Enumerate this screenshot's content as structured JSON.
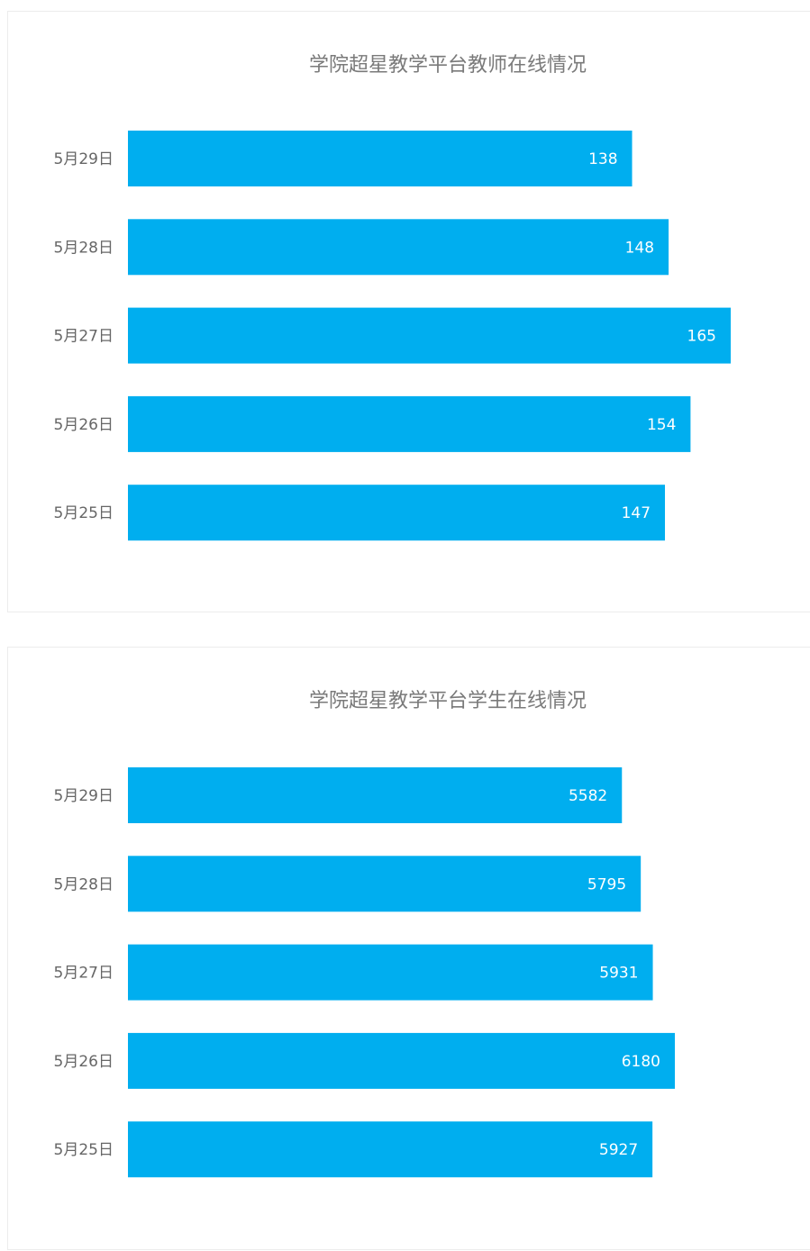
{
  "colors": {
    "bar": "#00aeef",
    "title": "#7a7a7a",
    "category_text": "#666666",
    "value_text": "#ffffff"
  },
  "chart_data": [
    {
      "type": "bar",
      "orientation": "horizontal",
      "title": "学院超星教学平台教师在线情况",
      "categories": [
        "5月29日",
        "5月28日",
        "5月27日",
        "5月26日",
        "5月25日"
      ],
      "values": [
        138,
        148,
        165,
        154,
        147
      ],
      "data_labels": true,
      "grid": false,
      "legend": "none"
    },
    {
      "type": "bar",
      "orientation": "horizontal",
      "title": "学院超星教学平台学生在线情况",
      "categories": [
        "5月29日",
        "5月28日",
        "5月27日",
        "5月26日",
        "5月25日"
      ],
      "values": [
        5582,
        5795,
        5931,
        6180,
        5927
      ],
      "data_labels": true,
      "grid": false,
      "legend": "none"
    }
  ]
}
